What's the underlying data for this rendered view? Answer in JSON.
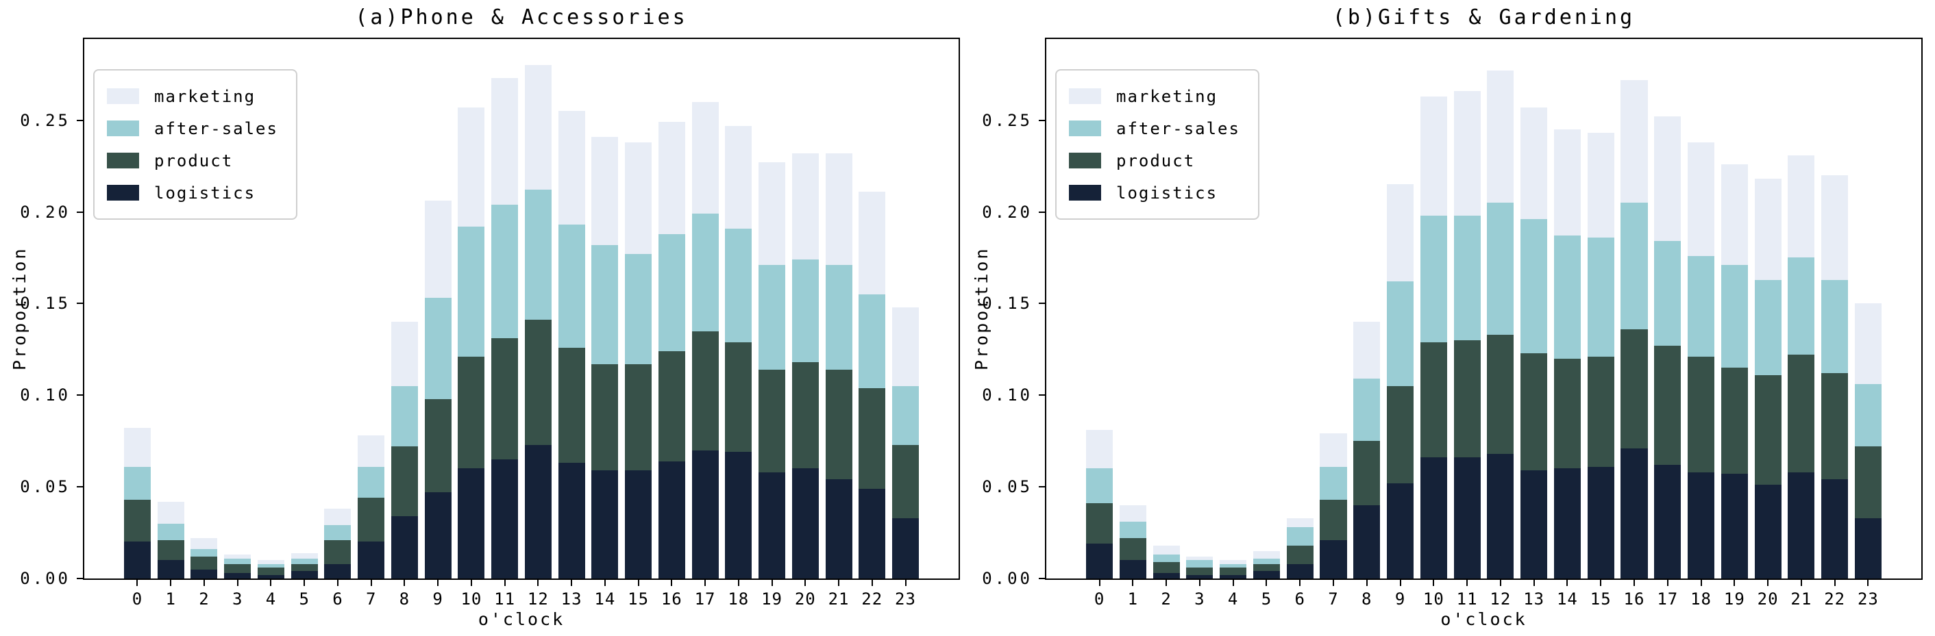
{
  "figure_titles": {
    "left": "(a)Phone & Accessories",
    "right": "(b)Gifts & Gardening"
  },
  "axis": {
    "ylabel": "Proportion",
    "xlabel": "o'clock",
    "ytick_labels": [
      "0.00",
      "0.05",
      "0.10",
      "0.15",
      "0.20",
      "0.25"
    ],
    "ytick_values": [
      0,
      0.05,
      0.1,
      0.15,
      0.2,
      0.25
    ],
    "xtick_labels": [
      "0",
      "1",
      "2",
      "3",
      "4",
      "5",
      "6",
      "7",
      "8",
      "9",
      "10",
      "11",
      "12",
      "13",
      "14",
      "15",
      "16",
      "17",
      "18",
      "19",
      "20",
      "21",
      "22",
      "23"
    ]
  },
  "legend": {
    "position": "upper-left",
    "entries": [
      {
        "label": "marketing",
        "color": "#e8edf6"
      },
      {
        "label": "after-sales",
        "color": "#9acdd4"
      },
      {
        "label": "product",
        "color": "#375149"
      },
      {
        "label": "logistics",
        "color": "#152238"
      }
    ]
  },
  "colors": {
    "marketing": "#e8edf6",
    "after_sales": "#9acdd4",
    "product": "#375149",
    "logistics": "#152238",
    "spine": "#000000",
    "background": "#ffffff"
  },
  "chart_data": [
    {
      "type": "bar",
      "stacked": true,
      "title": "(a)Phone & Accessories",
      "xlabel": "o'clock",
      "ylabel": "Proportion",
      "categories": [
        0,
        1,
        2,
        3,
        4,
        5,
        6,
        7,
        8,
        9,
        10,
        11,
        12,
        13,
        14,
        15,
        16,
        17,
        18,
        19,
        20,
        21,
        22,
        23
      ],
      "xlim": [
        -1.59,
        24.59
      ],
      "ylim": [
        0,
        0.2943
      ],
      "bar_width": 0.8,
      "grid": false,
      "series": [
        {
          "name": "logistics",
          "color": "#152238",
          "values": [
            0.02,
            0.01,
            0.005,
            0.003,
            0.002,
            0.004,
            0.008,
            0.02,
            0.034,
            0.047,
            0.06,
            0.065,
            0.073,
            0.063,
            0.059,
            0.059,
            0.064,
            0.07,
            0.069,
            0.058,
            0.06,
            0.054,
            0.049,
            0.033
          ]
        },
        {
          "name": "product",
          "color": "#375149",
          "values": [
            0.023,
            0.011,
            0.007,
            0.005,
            0.004,
            0.004,
            0.013,
            0.024,
            0.038,
            0.051,
            0.061,
            0.066,
            0.068,
            0.063,
            0.058,
            0.058,
            0.06,
            0.065,
            0.06,
            0.056,
            0.058,
            0.06,
            0.055,
            0.04
          ]
        },
        {
          "name": "after-sales",
          "color": "#9acdd4",
          "values": [
            0.018,
            0.009,
            0.004,
            0.003,
            0.002,
            0.003,
            0.008,
            0.017,
            0.033,
            0.055,
            0.071,
            0.073,
            0.071,
            0.067,
            0.065,
            0.06,
            0.064,
            0.064,
            0.062,
            0.057,
            0.056,
            0.057,
            0.051,
            0.032
          ]
        },
        {
          "name": "marketing",
          "color": "#e8edf6",
          "values": [
            0.021,
            0.012,
            0.006,
            0.002,
            0.002,
            0.003,
            0.009,
            0.017,
            0.035,
            0.053,
            0.065,
            0.069,
            0.068,
            0.062,
            0.059,
            0.061,
            0.061,
            0.061,
            0.056,
            0.056,
            0.058,
            0.061,
            0.056,
            0.043
          ]
        }
      ]
    },
    {
      "type": "bar",
      "stacked": true,
      "title": "(b)Gifts & Gardening",
      "xlabel": "o'clock",
      "ylabel": "Proportion",
      "categories": [
        0,
        1,
        2,
        3,
        4,
        5,
        6,
        7,
        8,
        9,
        10,
        11,
        12,
        13,
        14,
        15,
        16,
        17,
        18,
        19,
        20,
        21,
        22,
        23
      ],
      "xlim": [
        -1.59,
        24.59
      ],
      "ylim": [
        0,
        0.2943
      ],
      "bar_width": 0.8,
      "grid": false,
      "series": [
        {
          "name": "logistics",
          "color": "#152238",
          "values": [
            0.019,
            0.01,
            0.003,
            0.002,
            0.002,
            0.004,
            0.008,
            0.021,
            0.04,
            0.052,
            0.066,
            0.066,
            0.068,
            0.059,
            0.06,
            0.061,
            0.071,
            0.062,
            0.058,
            0.057,
            0.051,
            0.058,
            0.054,
            0.033
          ]
        },
        {
          "name": "product",
          "color": "#375149",
          "values": [
            0.022,
            0.012,
            0.006,
            0.004,
            0.004,
            0.004,
            0.01,
            0.022,
            0.035,
            0.053,
            0.063,
            0.064,
            0.065,
            0.064,
            0.06,
            0.06,
            0.065,
            0.065,
            0.063,
            0.058,
            0.06,
            0.064,
            0.058,
            0.039
          ]
        },
        {
          "name": "after-sales",
          "color": "#9acdd4",
          "values": [
            0.019,
            0.009,
            0.004,
            0.004,
            0.002,
            0.003,
            0.01,
            0.018,
            0.034,
            0.057,
            0.069,
            0.068,
            0.072,
            0.073,
            0.067,
            0.065,
            0.069,
            0.057,
            0.055,
            0.056,
            0.052,
            0.053,
            0.051,
            0.034
          ]
        },
        {
          "name": "marketing",
          "color": "#e8edf6",
          "values": [
            0.021,
            0.009,
            0.005,
            0.002,
            0.002,
            0.004,
            0.005,
            0.018,
            0.031,
            0.053,
            0.065,
            0.068,
            0.072,
            0.061,
            0.058,
            0.057,
            0.067,
            0.068,
            0.062,
            0.055,
            0.055,
            0.056,
            0.057,
            0.044
          ]
        }
      ]
    }
  ]
}
